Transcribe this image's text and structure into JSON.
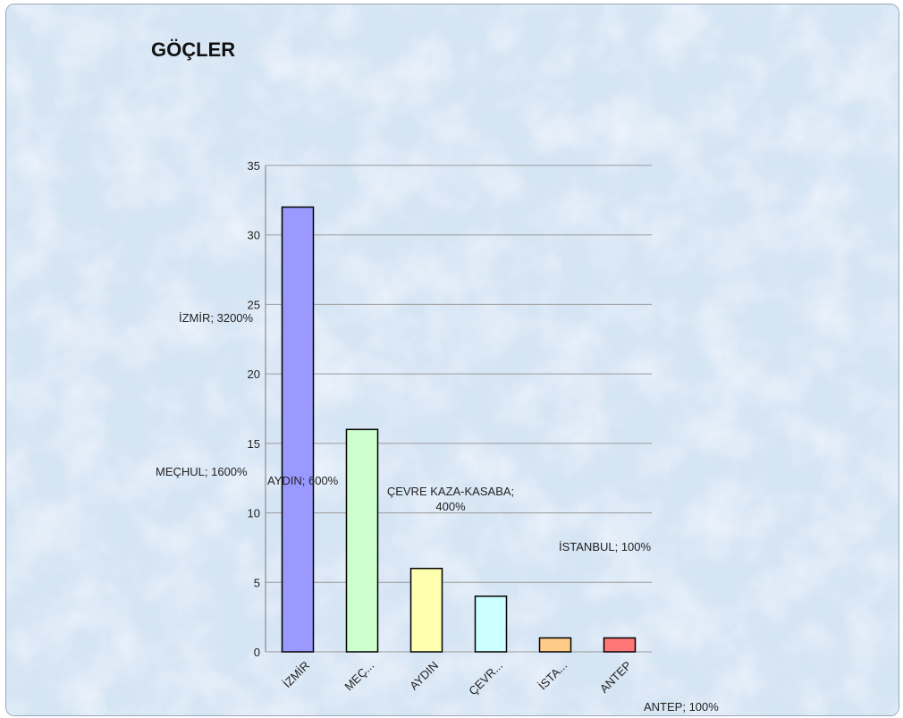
{
  "chart_data": {
    "type": "bar",
    "title": "GÖÇLER",
    "categories": [
      "İZMİR",
      "MEÇ...",
      "AYDIN",
      "ÇEVR...",
      "İSTA...",
      "ANTEP"
    ],
    "values": [
      32,
      16,
      6,
      4,
      1,
      1
    ],
    "colors": [
      "#9999ff",
      "#ccffcc",
      "#ffffb0",
      "#ccffff",
      "#ffcc88",
      "#ff7777"
    ],
    "ylim": [
      0,
      35
    ],
    "yticks": [
      0,
      5,
      10,
      15,
      20,
      25,
      30,
      35
    ],
    "grid": true,
    "data_labels": [
      "İZMİR; 3200%",
      "MEÇHUL; 1600%",
      "AYDIN; 600%",
      "ÇEVRE KAZA-KASABA;|400%",
      "İSTANBUL; 100%",
      "ANTEP; 100%"
    ]
  }
}
